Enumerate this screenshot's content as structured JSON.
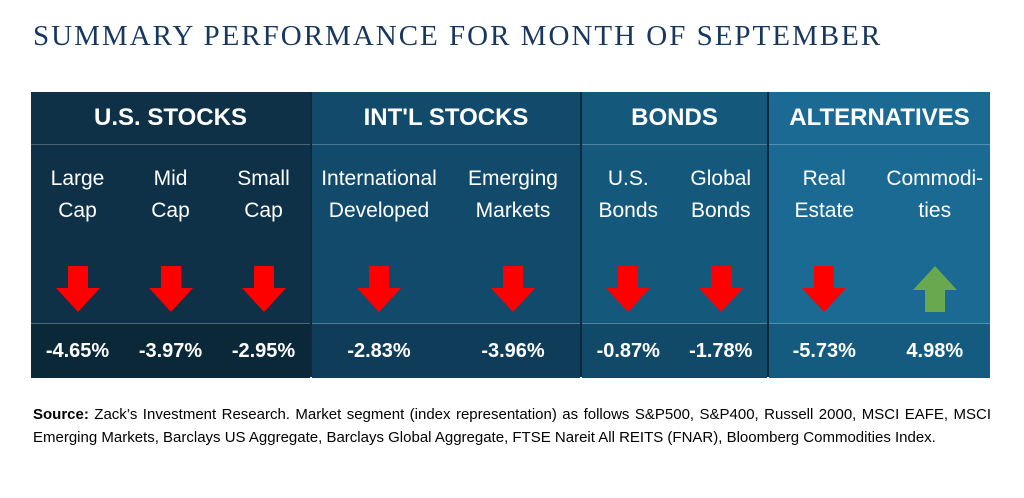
{
  "title": "SUMMARY PERFORMANCE FOR MONTH OF SEPTEMBER",
  "groups": [
    {
      "name": "U.S. STOCKS",
      "columns": [
        {
          "label": "Large\nCap",
          "direction": "down",
          "value": "-4.65%"
        },
        {
          "label": "Mid\nCap",
          "direction": "down",
          "value": "-3.97%"
        },
        {
          "label": "Small\nCap",
          "direction": "down",
          "value": "-2.95%"
        }
      ]
    },
    {
      "name": "INT'L STOCKS",
      "columns": [
        {
          "label": "International\nDeveloped",
          "direction": "down",
          "value": "-2.83%"
        },
        {
          "label": "Emerging\nMarkets",
          "direction": "down",
          "value": "-3.96%"
        }
      ]
    },
    {
      "name": "BONDS",
      "columns": [
        {
          "label": "U.S.\nBonds",
          "direction": "down",
          "value": "-0.87%"
        },
        {
          "label": "Global\nBonds",
          "direction": "down",
          "value": "-1.78%"
        }
      ]
    },
    {
      "name": "ALTERNATIVES",
      "columns": [
        {
          "label": "Real\nEstate",
          "direction": "down",
          "value": "-5.73%"
        },
        {
          "label": "Commodi-\nties",
          "direction": "up",
          "value": "4.98%"
        }
      ]
    }
  ],
  "colors": {
    "down_arrow": "#ff0000",
    "up_arrow": "#6aa84f"
  },
  "source_label": "Source:",
  "source_text": " Zack’s Investment Research. Market segment (index representation) as follows S&P500, S&P400, Russell 2000, MSCI EAFE, MSCI Emerging Markets, Barclays US Aggregate, Barclays Global Aggregate, FTSE Nareit All REITS (FNAR), Bloomberg Commodities Index."
}
